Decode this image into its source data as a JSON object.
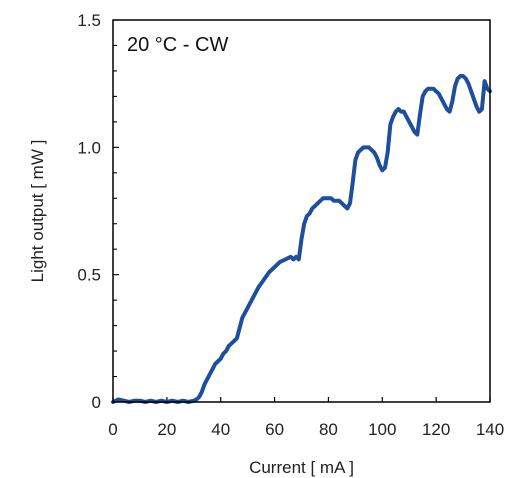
{
  "chart_data": {
    "type": "line",
    "annotation": "20 °C - CW",
    "xlabel": "Current  [ mA ]",
    "ylabel": "Light output [ mW ]",
    "xlim": [
      0,
      140
    ],
    "ylim": [
      0,
      1.5
    ],
    "x_ticks": [
      0,
      20,
      40,
      60,
      80,
      100,
      120,
      140
    ],
    "x_tick_labels": [
      "0",
      "20",
      "40",
      "60",
      "80",
      "100",
      "120",
      "140"
    ],
    "y_ticks": [
      0,
      0.5,
      1.0,
      1.5
    ],
    "y_tick_labels": [
      "0",
      "0.5",
      "1.0",
      "1.5"
    ],
    "grid": false,
    "line_color": "#1f4e9c",
    "series": [
      {
        "x": [
          0,
          2,
          4,
          6,
          8,
          10,
          12,
          14,
          16,
          18,
          20,
          22,
          24,
          26,
          28,
          30,
          31,
          32,
          33,
          34,
          35,
          36,
          37,
          38,
          39,
          40,
          41,
          42,
          43,
          44,
          45,
          46,
          47,
          48,
          49,
          50,
          52,
          54,
          56,
          58,
          60,
          62,
          64,
          66,
          67,
          68,
          69,
          70,
          71,
          72,
          73,
          74,
          75,
          76,
          77,
          78,
          79,
          80,
          81,
          82,
          83,
          84,
          85,
          86,
          87,
          88,
          89,
          90,
          91,
          92,
          93,
          94,
          95,
          96,
          97,
          98,
          99,
          100,
          101,
          102,
          103,
          104,
          105,
          106,
          107,
          108,
          109,
          110,
          111,
          112,
          113,
          114,
          115,
          116,
          117,
          118,
          119,
          120,
          121,
          122,
          123,
          124,
          125,
          126,
          127,
          128,
          129,
          130,
          131,
          132,
          133,
          134,
          135,
          136,
          137,
          138,
          139,
          140
        ],
        "y": [
          0,
          0.01,
          0.005,
          0,
          0.005,
          0.005,
          0,
          0.005,
          0,
          0.005,
          0,
          0.005,
          0,
          0.005,
          0,
          0.005,
          0.01,
          0.02,
          0.04,
          0.07,
          0.09,
          0.11,
          0.13,
          0.15,
          0.16,
          0.17,
          0.19,
          0.2,
          0.22,
          0.23,
          0.24,
          0.25,
          0.29,
          0.33,
          0.35,
          0.37,
          0.41,
          0.45,
          0.48,
          0.51,
          0.53,
          0.55,
          0.56,
          0.57,
          0.56,
          0.57,
          0.56,
          0.64,
          0.7,
          0.73,
          0.74,
          0.76,
          0.77,
          0.78,
          0.79,
          0.8,
          0.8,
          0.8,
          0.8,
          0.79,
          0.79,
          0.79,
          0.78,
          0.77,
          0.76,
          0.78,
          0.86,
          0.95,
          0.98,
          0.99,
          1.0,
          1.0,
          1.0,
          0.99,
          0.98,
          0.96,
          0.93,
          0.91,
          0.92,
          0.98,
          1.09,
          1.12,
          1.14,
          1.15,
          1.14,
          1.14,
          1.12,
          1.1,
          1.08,
          1.06,
          1.05,
          1.13,
          1.2,
          1.22,
          1.23,
          1.23,
          1.23,
          1.22,
          1.21,
          1.19,
          1.17,
          1.15,
          1.14,
          1.18,
          1.24,
          1.27,
          1.28,
          1.28,
          1.27,
          1.25,
          1.22,
          1.19,
          1.16,
          1.14,
          1.15,
          1.26,
          1.23,
          1.22
        ]
      }
    ]
  }
}
